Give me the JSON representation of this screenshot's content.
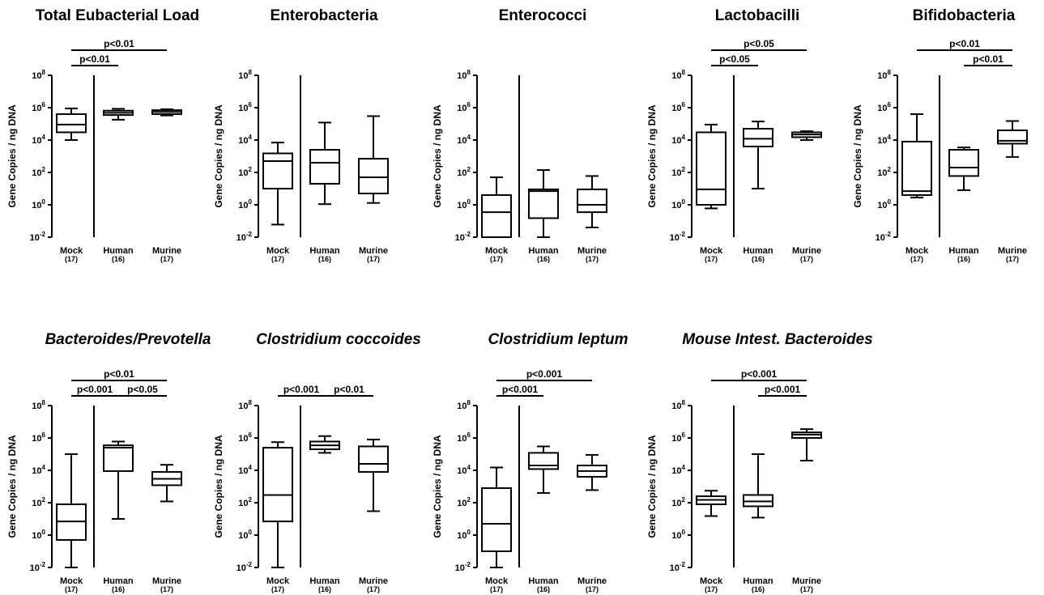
{
  "chart_data": [
    {
      "type": "box",
      "title": "Total Eubacterial Load",
      "title_italic": false,
      "ylabel": "Gene Copies / ng DNA",
      "yscale": "log",
      "ylim": [
        0.01,
        100000000
      ],
      "ytick_base": "10",
      "ytick_exponents": [
        "-2",
        "0",
        "2",
        "4",
        "6",
        "8"
      ],
      "categories": [
        "Mock",
        "Human",
        "Murine"
      ],
      "counts": [
        "(17)",
        "(16)",
        "(17)"
      ],
      "divider_after": "Mock",
      "boxes": [
        {
          "min": 10000,
          "q1": 30000,
          "median": 90000,
          "q3": 400000,
          "max": 900000
        },
        {
          "min": 180000,
          "q1": 350000,
          "median": 480000,
          "q3": 650000,
          "max": 850000
        },
        {
          "min": 330000,
          "q1": 400000,
          "median": 550000,
          "q3": 700000,
          "max": 800000
        }
      ],
      "significance": [
        {
          "from": "Mock",
          "to": "Human",
          "label": "p<0.01"
        },
        {
          "from": "Mock",
          "to": "Murine",
          "label": "p<0.01"
        }
      ]
    },
    {
      "type": "box",
      "title": "Enterobacteria",
      "title_italic": false,
      "ylabel": "Gene Copies / ng DNA",
      "yscale": "log",
      "ylim": [
        0.01,
        100000000
      ],
      "ytick_base": "10",
      "ytick_exponents": [
        "-2",
        "0",
        "2",
        "4",
        "6",
        "8"
      ],
      "categories": [
        "Mock",
        "Human",
        "Murine"
      ],
      "counts": [
        "(17)",
        "(16)",
        "(17)"
      ],
      "divider_after": "Mock",
      "boxes": [
        {
          "min": 0.06,
          "q1": 10,
          "median": 500,
          "q3": 1500,
          "max": 7000
        },
        {
          "min": 1.1,
          "q1": 20,
          "median": 400,
          "q3": 2500,
          "max": 120000
        },
        {
          "min": 1.3,
          "q1": 5,
          "median": 50,
          "q3": 700,
          "max": 300000
        }
      ],
      "significance": []
    },
    {
      "type": "box",
      "title": "Enterococci",
      "title_italic": false,
      "ylabel": "Gene Copies / ng DNA",
      "yscale": "log",
      "ylim": [
        0.01,
        100000000
      ],
      "ytick_base": "10",
      "ytick_exponents": [
        "-2",
        "0",
        "2",
        "4",
        "6",
        "8"
      ],
      "categories": [
        "Mock",
        "Human",
        "Murine"
      ],
      "counts": [
        "(17)",
        "(16)",
        "(17)"
      ],
      "divider_after": "Mock",
      "boxes": [
        {
          "min": 0.01,
          "q1": 0.01,
          "median": 0.35,
          "q3": 4,
          "max": 50
        },
        {
          "min": 0.01,
          "q1": 0.15,
          "median": 7,
          "q3": 9,
          "max": 140
        },
        {
          "min": 0.04,
          "q1": 0.35,
          "median": 1,
          "q3": 9,
          "max": 60
        }
      ],
      "significance": []
    },
    {
      "type": "box",
      "title": "Lactobacilli",
      "title_italic": false,
      "ylabel": "Gene Copies / ng DNA",
      "yscale": "log",
      "ylim": [
        0.01,
        100000000
      ],
      "ytick_base": "10",
      "ytick_exponents": [
        "-2",
        "0",
        "2",
        "4",
        "6",
        "8"
      ],
      "categories": [
        "Mock",
        "Human",
        "Murine"
      ],
      "counts": [
        "(17)",
        "(16)",
        "(17)"
      ],
      "divider_after": "Mock",
      "boxes": [
        {
          "min": 0.6,
          "q1": 1,
          "median": 9,
          "q3": 30000,
          "max": 90000
        },
        {
          "min": 10,
          "q1": 4000,
          "median": 12000,
          "q3": 50000,
          "max": 140000
        },
        {
          "min": 10000,
          "q1": 15000,
          "median": 22000,
          "q3": 30000,
          "max": 35000
        }
      ],
      "significance": [
        {
          "from": "Mock",
          "to": "Human",
          "label": "p<0.05"
        },
        {
          "from": "Mock",
          "to": "Murine",
          "label": "p<0.05"
        }
      ]
    },
    {
      "type": "box",
      "title": "Bifidobacteria",
      "title_italic": false,
      "ylabel": "Gene Copies / ng DNA",
      "yscale": "log",
      "ylim": [
        0.01,
        100000000
      ],
      "ytick_base": "10",
      "ytick_exponents": [
        "-2",
        "0",
        "2",
        "4",
        "6",
        "8"
      ],
      "categories": [
        "Mock",
        "Human",
        "Murine"
      ],
      "counts": [
        "(17)",
        "(16)",
        "(17)"
      ],
      "divider_after": "Mock",
      "boxes": [
        {
          "min": 2.8,
          "q1": 4,
          "median": 7,
          "q3": 8000,
          "max": 400000
        },
        {
          "min": 8,
          "q1": 60,
          "median": 200,
          "q3": 2500,
          "max": 3500
        },
        {
          "min": 900,
          "q1": 6000,
          "median": 9000,
          "q3": 40000,
          "max": 150000
        }
      ],
      "significance": [
        {
          "from": "Mock",
          "to": "Murine",
          "label": "p<0.01"
        },
        {
          "from": "Human",
          "to": "Murine",
          "label": "p<0.01"
        }
      ]
    },
    {
      "type": "box",
      "title": "Bacteroides/Prevotella",
      "title_italic": true,
      "ylabel": "Gene Copies / ng DNA",
      "yscale": "log",
      "ylim": [
        0.01,
        100000000
      ],
      "ytick_base": "10",
      "ytick_exponents": [
        "-2",
        "0",
        "2",
        "4",
        "6",
        "8"
      ],
      "categories": [
        "Mock",
        "Human",
        "Murine"
      ],
      "counts": [
        "(17)",
        "(16)",
        "(17)"
      ],
      "divider_after": "Mock",
      "boxes": [
        {
          "min": 0.01,
          "q1": 0.5,
          "median": 7,
          "q3": 80,
          "max": 100000
        },
        {
          "min": 10,
          "q1": 9000,
          "median": 250000,
          "q3": 350000,
          "max": 600000
        },
        {
          "min": 120,
          "q1": 1200,
          "median": 3000,
          "q3": 8000,
          "max": 22000
        }
      ],
      "significance": [
        {
          "from": "Mock",
          "to": "Human",
          "label": "p<0.001"
        },
        {
          "from": "Mock",
          "to": "Murine",
          "label": "p<0.01"
        },
        {
          "from": "Human",
          "to": "Murine",
          "label": "p<0.05"
        }
      ]
    },
    {
      "type": "box",
      "title": "Clostridium coccoides",
      "title_italic": true,
      "ylabel": "Gene Copies / ng DNA",
      "yscale": "log",
      "ylim": [
        0.01,
        100000000
      ],
      "ytick_base": "10",
      "ytick_exponents": [
        "-2",
        "0",
        "2",
        "4",
        "6",
        "8"
      ],
      "categories": [
        "Mock",
        "Human",
        "Murine"
      ],
      "counts": [
        "(17)",
        "(16)",
        "(17)"
      ],
      "divider_after": "Mock",
      "boxes": [
        {
          "min": 0.01,
          "q1": 7,
          "median": 300,
          "q3": 250000,
          "max": 550000
        },
        {
          "min": 120000,
          "q1": 200000,
          "median": 350000,
          "q3": 600000,
          "max": 1300000
        },
        {
          "min": 30,
          "q1": 8000,
          "median": 25000,
          "q3": 300000,
          "max": 800000
        }
      ],
      "significance": [
        {
          "from": "Mock",
          "to": "Human",
          "label": "p<0.001"
        },
        {
          "from": "Human",
          "to": "Murine",
          "label": "p<0.01"
        }
      ]
    },
    {
      "type": "box",
      "title": "Clostridium leptum",
      "title_italic": true,
      "ylabel": "Gene Copies / ng DNA",
      "yscale": "log",
      "ylim": [
        0.01,
        100000000
      ],
      "ytick_base": "10",
      "ytick_exponents": [
        "-2",
        "0",
        "2",
        "4",
        "6",
        "8"
      ],
      "categories": [
        "Mock",
        "Human",
        "Murine"
      ],
      "counts": [
        "(17)",
        "(16)",
        "(17)"
      ],
      "divider_after": "Mock",
      "boxes": [
        {
          "min": 0.01,
          "q1": 0.1,
          "median": 5,
          "q3": 800,
          "max": 15000
        },
        {
          "min": 400,
          "q1": 12000,
          "median": 20000,
          "q3": 120000,
          "max": 300000
        },
        {
          "min": 600,
          "q1": 4000,
          "median": 9000,
          "q3": 20000,
          "max": 90000
        }
      ],
      "significance": [
        {
          "from": "Mock",
          "to": "Human",
          "label": "p<0.001"
        },
        {
          "from": "Mock",
          "to": "Murine",
          "label": "p<0.001"
        }
      ]
    },
    {
      "type": "box",
      "title": "Mouse Intest. Bacteroides",
      "title_italic": true,
      "ylabel": "Gene Copies / ng DNA",
      "yscale": "log",
      "ylim": [
        0.01,
        100000000
      ],
      "ytick_base": "10",
      "ytick_exponents": [
        "-2",
        "0",
        "2",
        "4",
        "6",
        "8"
      ],
      "categories": [
        "Mock",
        "Human",
        "Murine"
      ],
      "counts": [
        "(17)",
        "(16)",
        "(17)"
      ],
      "divider_after": "Mock",
      "boxes": [
        {
          "min": 15,
          "q1": 80,
          "median": 150,
          "q3": 250,
          "max": 550
        },
        {
          "min": 12,
          "q1": 60,
          "median": 120,
          "q3": 300,
          "max": 100000
        },
        {
          "min": 40000,
          "q1": 1000000,
          "median": 1600000,
          "q3": 2200000,
          "max": 3500000
        }
      ],
      "significance": [
        {
          "from": "Mock",
          "to": "Murine",
          "label": "p<0.001"
        },
        {
          "from": "Human",
          "to": "Murine",
          "label": "p<0.001"
        }
      ]
    }
  ]
}
